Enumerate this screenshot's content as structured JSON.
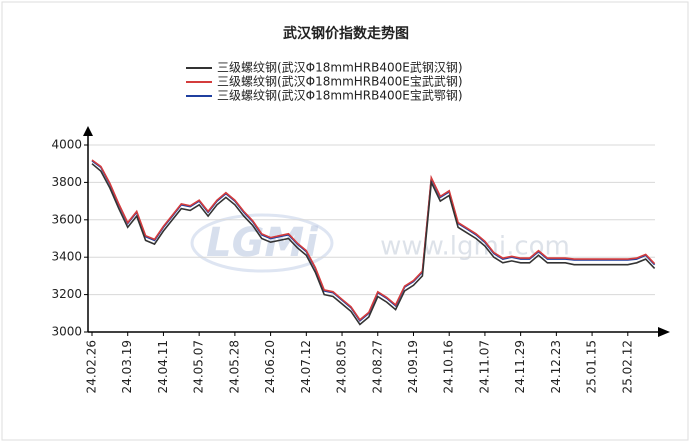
{
  "chart_data": {
    "type": "line",
    "title": "武汉钢价指数走势图",
    "watermark": "www.lgmi.com",
    "watermark_logo": "LGMi",
    "categories": [
      "24.02.26",
      null,
      null,
      null,
      "24.03.19",
      null,
      null,
      null,
      "24.04.11",
      null,
      null,
      null,
      "24.05.07",
      null,
      null,
      null,
      "24.05.28",
      null,
      null,
      null,
      "24.06.20",
      null,
      null,
      null,
      "24.07.12",
      null,
      null,
      null,
      "24.08.05",
      null,
      null,
      null,
      "24.08.27",
      null,
      null,
      null,
      "24.09.19",
      null,
      null,
      null,
      "24.10.16",
      null,
      null,
      null,
      "24.11.07",
      null,
      null,
      null,
      "24.11.29",
      null,
      null,
      null,
      "24.12.23",
      null,
      null,
      null,
      "25.01.15",
      null,
      null,
      null,
      "25.02.12",
      null,
      null,
      null
    ],
    "series": [
      {
        "name": "三级螺纹钢(武汉Φ18mmHRB400E宝武鄂钢)",
        "color": "#1f3f9f",
        "values": [
          3915,
          3880,
          3790,
          3680,
          3580,
          3640,
          3510,
          3490,
          3560,
          3620,
          3680,
          3670,
          3700,
          3640,
          3700,
          3740,
          3700,
          3640,
          3590,
          3520,
          3500,
          3510,
          3520,
          3470,
          3430,
          3340,
          3220,
          3210,
          3170,
          3130,
          3060,
          3100,
          3210,
          3180,
          3140,
          3240,
          3270,
          3320,
          3820,
          3720,
          3750,
          3580,
          3550,
          3520,
          3480,
          3420,
          3390,
          3400,
          3390,
          3390,
          3430,
          3390,
          3390,
          3390,
          3385,
          3385,
          3385,
          3385,
          3385,
          3385,
          3385,
          3390,
          3410,
          3360
        ]
      },
      {
        "name": "三级螺纹钢(武汉Φ18mmHRB400E宝武武钢)",
        "color": "#d43c3c",
        "values": [
          3920,
          3885,
          3795,
          3685,
          3585,
          3645,
          3515,
          3495,
          3565,
          3625,
          3685,
          3675,
          3705,
          3645,
          3705,
          3745,
          3705,
          3645,
          3595,
          3525,
          3505,
          3515,
          3525,
          3475,
          3435,
          3345,
          3225,
          3215,
          3175,
          3135,
          3065,
          3105,
          3215,
          3185,
          3145,
          3245,
          3275,
          3325,
          3825,
          3725,
          3755,
          3585,
          3555,
          3525,
          3485,
          3425,
          3395,
          3405,
          3395,
          3395,
          3435,
          3395,
          3395,
          3395,
          3390,
          3390,
          3390,
          3390,
          3390,
          3390,
          3390,
          3395,
          3415,
          3365
        ]
      },
      {
        "name": "三级螺纹钢(武汉Φ18mmHRB400E武钢汉钢)",
        "color": "#333333",
        "values": [
          3900,
          3860,
          3770,
          3660,
          3560,
          3620,
          3490,
          3470,
          3540,
          3600,
          3660,
          3650,
          3680,
          3620,
          3680,
          3720,
          3680,
          3620,
          3570,
          3500,
          3480,
          3490,
          3500,
          3450,
          3410,
          3320,
          3200,
          3190,
          3150,
          3110,
          3040,
          3080,
          3190,
          3160,
          3120,
          3220,
          3250,
          3300,
          3800,
          3700,
          3730,
          3560,
          3530,
          3500,
          3460,
          3400,
          3370,
          3380,
          3370,
          3370,
          3410,
          3370,
          3370,
          3370,
          3360,
          3360,
          3360,
          3360,
          3360,
          3360,
          3360,
          3370,
          3390,
          3340
        ]
      }
    ],
    "ylim": [
      3000,
      4000
    ],
    "yticks": [
      3000,
      3200,
      3400,
      3600,
      3800,
      4000
    ],
    "grid": true
  }
}
